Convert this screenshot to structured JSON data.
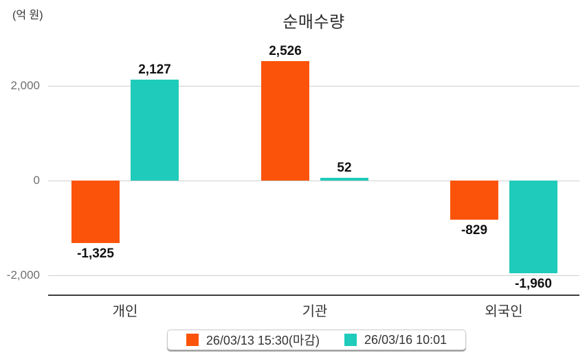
{
  "chart_data": {
    "type": "bar",
    "title": "순매수량",
    "unit_label": "(억 원)",
    "categories": [
      "개인",
      "기관",
      "외국인"
    ],
    "series": [
      {
        "name": "26/03/13 15:30(마감)",
        "color": "#fb540a",
        "values": [
          -1325,
          2526,
          -829
        ],
        "value_labels": [
          "-1,325",
          "2,526",
          "-829"
        ]
      },
      {
        "name": "26/03/16 10:01",
        "color": "#1fcbba",
        "values": [
          2127,
          52,
          -1960
        ],
        "value_labels": [
          "2,127",
          "52",
          "-1,960"
        ]
      }
    ],
    "yticks": [
      {
        "value": 2000,
        "label": "2,000"
      },
      {
        "value": 0,
        "label": "0"
      },
      {
        "value": -2000,
        "label": "-2,000"
      }
    ],
    "ylim": [
      -2900,
      2900
    ],
    "grid": true,
    "legend_position": "bottom",
    "colors": {
      "gridline": "#cfcfcf",
      "axis": "#3c3c3c",
      "tick_label": "#6f6f6f",
      "value_label": "#111111",
      "category_label": "#333333"
    }
  }
}
